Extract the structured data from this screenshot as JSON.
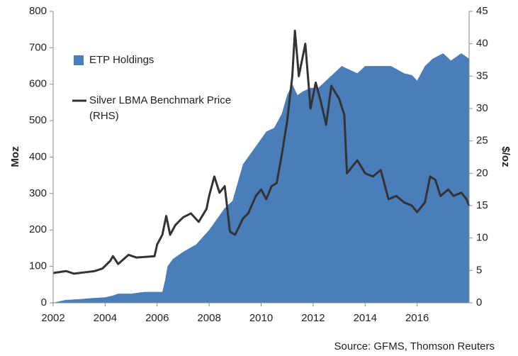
{
  "chart_data": {
    "type": "combo",
    "source": "Source: GFMS, Thomson Reuters",
    "y_label": "Moz",
    "y2_label": "$/oz",
    "xlim": [
      2002,
      2018
    ],
    "xticks": [
      2002,
      2004,
      2006,
      2008,
      2010,
      2012,
      2014,
      2016
    ],
    "ylim": [
      0,
      800
    ],
    "yticks": [
      0,
      100,
      200,
      300,
      400,
      500,
      600,
      700,
      800
    ],
    "y2lim": [
      0,
      45
    ],
    "y2ticks": [
      0,
      5,
      10,
      15,
      20,
      25,
      30,
      35,
      40,
      45
    ],
    "series": [
      {
        "name": "ETP Holdings",
        "type": "area",
        "color": "#4a7ebb",
        "x": [
          2002.0,
          2002.3,
          2002.5,
          2003,
          2003.5,
          2004,
          2004.3,
          2004.5,
          2005,
          2005.5,
          2006,
          2006.2,
          2006.3,
          2006.4,
          2006.6,
          2007,
          2007.5,
          2008,
          2008.3,
          2008.6,
          2008.9,
          2009.1,
          2009.3,
          2009.6,
          2009.9,
          2010.2,
          2010.5,
          2010.8,
          2011.0,
          2011.2,
          2011.4,
          2011.6,
          2011.9,
          2012.2,
          2012.5,
          2012.8,
          2013.1,
          2013.4,
          2013.7,
          2014,
          2014.5,
          2015,
          2015.5,
          2015.8,
          2016.0,
          2016.3,
          2016.6,
          2017,
          2017.3,
          2017.7,
          2018
        ],
        "values": [
          0,
          5,
          8,
          10,
          13,
          15,
          20,
          25,
          25,
          30,
          30,
          30,
          60,
          100,
          120,
          140,
          160,
          200,
          230,
          260,
          280,
          330,
          380,
          410,
          440,
          470,
          480,
          520,
          570,
          600,
          570,
          580,
          590,
          590,
          610,
          630,
          650,
          640,
          630,
          650,
          650,
          650,
          630,
          625,
          610,
          650,
          670,
          685,
          665,
          685,
          670
        ]
      },
      {
        "name": "Silver LBMA Benchmark Price (RHS)",
        "type": "line",
        "axis": "y2",
        "color": "#333333",
        "x": [
          2002,
          2002.5,
          2002.8,
          2003.2,
          2003.6,
          2003.9,
          2004.2,
          2004.3,
          2004.5,
          2004.9,
          2005.2,
          2005.6,
          2005.9,
          2006.0,
          2006.2,
          2006.35,
          2006.5,
          2006.7,
          2007,
          2007.3,
          2007.6,
          2007.9,
          2008.0,
          2008.2,
          2008.4,
          2008.6,
          2008.8,
          2009,
          2009.3,
          2009.5,
          2009.8,
          2010,
          2010.2,
          2010.4,
          2010.6,
          2010.8,
          2011.0,
          2011.2,
          2011.3,
          2011.45,
          2011.7,
          2011.9,
          2012.1,
          2012.3,
          2012.5,
          2012.7,
          2013,
          2013.2,
          2013.3,
          2013.5,
          2013.7,
          2014,
          2014.3,
          2014.6,
          2014.9,
          2015.2,
          2015.5,
          2015.8,
          2016.0,
          2016.3,
          2016.5,
          2016.7,
          2016.9,
          2017.2,
          2017.4,
          2017.7,
          2017.9,
          2018
        ],
        "values": [
          4.6,
          4.9,
          4.5,
          4.7,
          4.9,
          5.3,
          6.5,
          7.2,
          6,
          7.4,
          7,
          7.1,
          7.2,
          9,
          10.5,
          13.4,
          10.5,
          12,
          13.2,
          13.8,
          12.5,
          14.5,
          16.5,
          19.5,
          17,
          18,
          11,
          10.5,
          13,
          13.8,
          16.5,
          17.5,
          16,
          18,
          18.5,
          23,
          28,
          35,
          42,
          35,
          40,
          30,
          34,
          31,
          27.5,
          33.5,
          31.5,
          29,
          20,
          21,
          22,
          20,
          19.5,
          20.5,
          16,
          16.5,
          15.5,
          15,
          14,
          15.5,
          19.5,
          19,
          16.5,
          17.5,
          16.5,
          17,
          16,
          15
        ]
      }
    ]
  }
}
